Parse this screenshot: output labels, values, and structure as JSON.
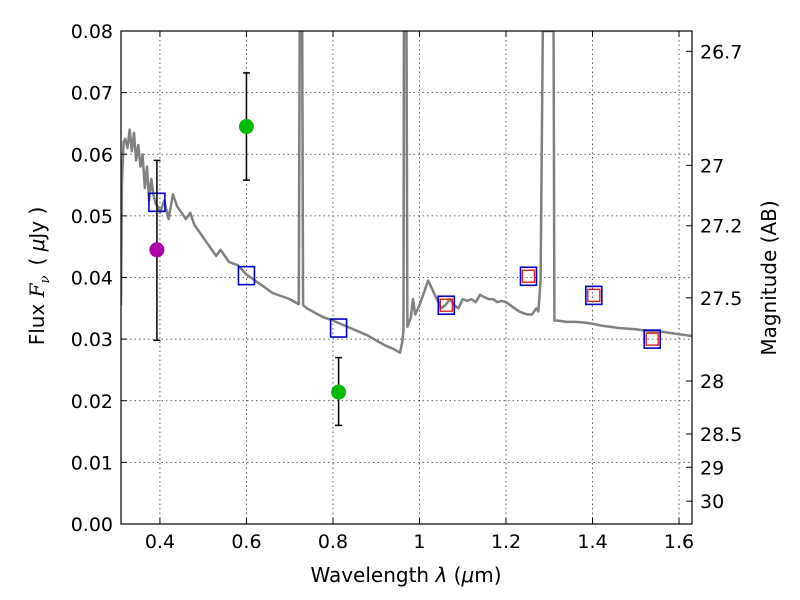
{
  "chart_data": {
    "type": "scatter",
    "xlabel": "Wavelength  λ (μm)",
    "ylabel": "Flux  F_ν  ( μJy )",
    "ylabel_parts": {
      "prefix": "Flux  ",
      "symbol": "F",
      "subscript": "ν",
      "paren_open": "( ",
      "mu": "μ",
      "unit": "Jy )"
    },
    "xlabel_parts": {
      "prefix": "Wavelength  ",
      "lambda": "λ",
      "paren_open": " (",
      "mu": "μ",
      "unit": "m)"
    },
    "y2label": "Magnitude (AB)",
    "xlim": [
      0.31,
      1.63
    ],
    "ylim": [
      0.0,
      0.08
    ],
    "grid": true,
    "x_ticks": [
      "0.4",
      "0.6",
      "0.8",
      "1",
      "1.2",
      "1.4",
      "1.6"
    ],
    "x_tick_values": [
      0.4,
      0.6,
      0.8,
      1.0,
      1.2,
      1.4,
      1.6
    ],
    "y_ticks": [
      "0.00",
      "0.01",
      "0.02",
      "0.03",
      "0.04",
      "0.05",
      "0.06",
      "0.07",
      "0.08"
    ],
    "y_tick_values": [
      0.0,
      0.01,
      0.02,
      0.03,
      0.04,
      0.05,
      0.06,
      0.07,
      0.08
    ],
    "y2_ticks": [
      {
        "label": "26.7",
        "flux": 0.0767
      },
      {
        "label": "27",
        "flux": 0.0582
      },
      {
        "label": "27.2",
        "flux": 0.0484
      },
      {
        "label": "27.5",
        "flux": 0.0367
      },
      {
        "label": "28",
        "flux": 0.0232
      },
      {
        "label": "28.5",
        "flux": 0.0146
      },
      {
        "label": "29",
        "flux": 0.0092
      },
      {
        "label": "30",
        "flux": 0.0037
      }
    ],
    "series": [
      {
        "name": "model spectrum",
        "kind": "line",
        "color": "#808080",
        "points": [
          [
            0.31,
            0.0355
          ],
          [
            0.312,
            0.055
          ],
          [
            0.316,
            0.062
          ],
          [
            0.32,
            0.0625
          ],
          [
            0.325,
            0.061
          ],
          [
            0.33,
            0.064
          ],
          [
            0.335,
            0.0605
          ],
          [
            0.34,
            0.0635
          ],
          [
            0.345,
            0.059
          ],
          [
            0.35,
            0.0615
          ],
          [
            0.355,
            0.058
          ],
          [
            0.36,
            0.06
          ],
          [
            0.365,
            0.0545
          ],
          [
            0.37,
            0.058
          ],
          [
            0.375,
            0.0525
          ],
          [
            0.38,
            0.056
          ],
          [
            0.385,
            0.0535
          ],
          [
            0.39,
            0.052
          ],
          [
            0.395,
            0.0515
          ],
          [
            0.4,
            0.0505
          ],
          [
            0.41,
            0.0525
          ],
          [
            0.42,
            0.0495
          ],
          [
            0.43,
            0.0535
          ],
          [
            0.44,
            0.0515
          ],
          [
            0.45,
            0.0505
          ],
          [
            0.46,
            0.0495
          ],
          [
            0.47,
            0.0505
          ],
          [
            0.48,
            0.0485
          ],
          [
            0.49,
            0.0475
          ],
          [
            0.5,
            0.0465
          ],
          [
            0.51,
            0.0455
          ],
          [
            0.52,
            0.0445
          ],
          [
            0.53,
            0.0435
          ],
          [
            0.54,
            0.0445
          ],
          [
            0.55,
            0.0435
          ],
          [
            0.56,
            0.0425
          ],
          [
            0.58,
            0.042
          ],
          [
            0.6,
            0.0405
          ],
          [
            0.62,
            0.0395
          ],
          [
            0.64,
            0.0385
          ],
          [
            0.66,
            0.0375
          ],
          [
            0.68,
            0.037
          ],
          [
            0.7,
            0.0365
          ],
          [
            0.72,
            0.0357
          ],
          [
            0.721,
            0.0357
          ],
          [
            0.723,
            0.08
          ],
          [
            0.729,
            0.08
          ],
          [
            0.731,
            0.0355
          ],
          [
            0.74,
            0.035
          ],
          [
            0.76,
            0.0342
          ],
          [
            0.78,
            0.0335
          ],
          [
            0.8,
            0.033
          ],
          [
            0.82,
            0.0324
          ],
          [
            0.84,
            0.0318
          ],
          [
            0.86,
            0.0312
          ],
          [
            0.88,
            0.0306
          ],
          [
            0.9,
            0.0298
          ],
          [
            0.92,
            0.029
          ],
          [
            0.94,
            0.0284
          ],
          [
            0.955,
            0.0278
          ],
          [
            0.96,
            0.0295
          ],
          [
            0.963,
            0.0315
          ],
          [
            0.964,
            0.08
          ],
          [
            0.97,
            0.08
          ],
          [
            0.972,
            0.032
          ],
          [
            0.98,
            0.0335
          ],
          [
            0.985,
            0.0365
          ],
          [
            0.99,
            0.034
          ],
          [
            1.0,
            0.0355
          ],
          [
            1.01,
            0.0375
          ],
          [
            1.02,
            0.0395
          ],
          [
            1.03,
            0.038
          ],
          [
            1.04,
            0.0365
          ],
          [
            1.05,
            0.035
          ],
          [
            1.06,
            0.0355
          ],
          [
            1.07,
            0.0365
          ],
          [
            1.08,
            0.0355
          ],
          [
            1.09,
            0.035
          ],
          [
            1.1,
            0.0365
          ],
          [
            1.11,
            0.0362
          ],
          [
            1.12,
            0.0365
          ],
          [
            1.13,
            0.036
          ],
          [
            1.14,
            0.0372
          ],
          [
            1.15,
            0.0368
          ],
          [
            1.16,
            0.0365
          ],
          [
            1.17,
            0.0365
          ],
          [
            1.18,
            0.036
          ],
          [
            1.19,
            0.0362
          ],
          [
            1.2,
            0.036
          ],
          [
            1.21,
            0.0355
          ],
          [
            1.22,
            0.035
          ],
          [
            1.23,
            0.0345
          ],
          [
            1.24,
            0.0342
          ],
          [
            1.25,
            0.034
          ],
          [
            1.26,
            0.034
          ],
          [
            1.27,
            0.035
          ],
          [
            1.275,
            0.0345
          ],
          [
            1.28,
            0.0395
          ],
          [
            1.285,
            0.08
          ],
          [
            1.31,
            0.08
          ],
          [
            1.312,
            0.033
          ],
          [
            1.32,
            0.033
          ],
          [
            1.34,
            0.0328
          ],
          [
            1.36,
            0.0328
          ],
          [
            1.38,
            0.0327
          ],
          [
            1.4,
            0.0325
          ],
          [
            1.42,
            0.0322
          ],
          [
            1.44,
            0.032
          ],
          [
            1.46,
            0.0318
          ],
          [
            1.48,
            0.0317
          ],
          [
            1.5,
            0.0316
          ],
          [
            1.52,
            0.0314
          ],
          [
            1.54,
            0.0312
          ],
          [
            1.56,
            0.0312
          ],
          [
            1.58,
            0.031
          ],
          [
            1.6,
            0.0308
          ],
          [
            1.63,
            0.0305
          ]
        ]
      },
      {
        "name": "model photometry",
        "kind": "square",
        "color": "#0000cc",
        "points": [
          [
            0.393,
            0.0522
          ],
          [
            0.6,
            0.0403
          ],
          [
            0.813,
            0.0318
          ],
          [
            1.062,
            0.0355
          ],
          [
            1.252,
            0.0402
          ],
          [
            1.403,
            0.0371
          ],
          [
            1.538,
            0.03
          ]
        ]
      },
      {
        "name": "observed photometry (red)",
        "kind": "small-square",
        "color": "#dd2222",
        "points": [
          [
            1.062,
            0.0355
          ],
          [
            1.252,
            0.0402
          ],
          [
            1.403,
            0.0371
          ],
          [
            1.538,
            0.03
          ]
        ]
      },
      {
        "name": "observed photometry (magenta)",
        "kind": "circle",
        "color": "#aa00aa",
        "points": [
          [
            0.393,
            0.0445
          ]
        ],
        "errors": [
          [
            0.0298,
            0.059
          ]
        ]
      },
      {
        "name": "observed photometry (green)",
        "kind": "circle",
        "color": "#00bb00",
        "points": [
          [
            0.6,
            0.0645
          ],
          [
            0.813,
            0.0214
          ]
        ],
        "errors": [
          [
            0.0558,
            0.0732
          ],
          [
            0.016,
            0.027
          ]
        ]
      }
    ]
  }
}
